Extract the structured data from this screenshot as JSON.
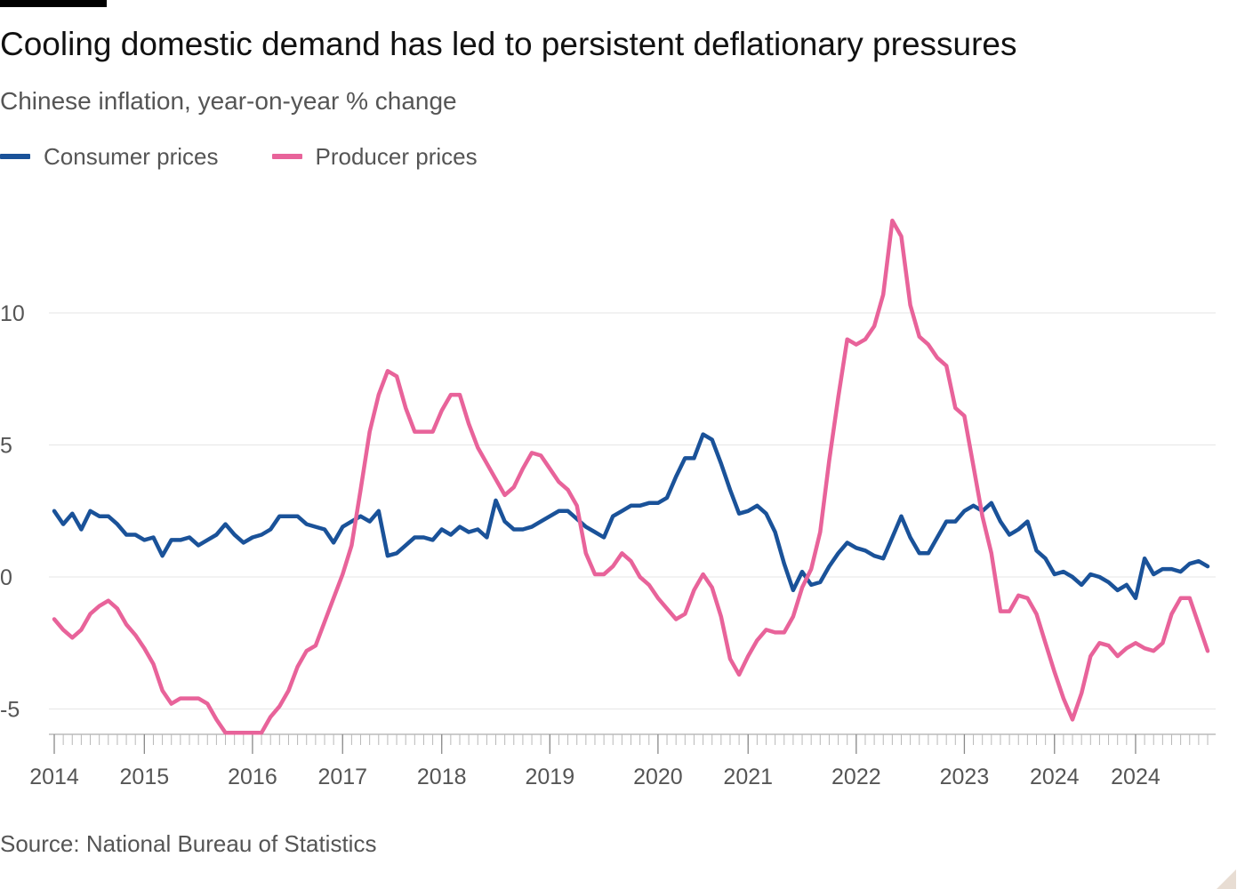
{
  "title": "Cooling domestic demand has led to persistent deflationary pressures",
  "subtitle": "Chinese inflation, year-on-year % change",
  "source": "Source: National Bureau of Statistics",
  "colors": {
    "consumer": "#1a5299",
    "producer": "#e8639a",
    "grid": "#e6e6e6",
    "axis": "#9a9a9a",
    "text": "#555555"
  },
  "chart_data": {
    "type": "line",
    "title": "Cooling domestic demand has led to persistent deflationary pressures",
    "subtitle": "Chinese inflation, year-on-year % change",
    "xlabel": "",
    "ylabel": "",
    "x_start": "2014-01",
    "x_step": "month",
    "x_ticks": [
      "2014",
      "2015",
      "2016",
      "2017",
      "2018",
      "2019",
      "2020",
      "2021",
      "2022",
      "2023",
      "2024",
      "2024"
    ],
    "y_ticks": [
      "10",
      "5",
      "0",
      "-5"
    ],
    "ylim": [
      -6.2,
      14
    ],
    "grid": true,
    "legend_position": "top-left",
    "series": [
      {
        "name": "Consumer prices",
        "color": "#1a5299",
        "values": [
          2.5,
          2.0,
          2.4,
          1.8,
          2.5,
          2.3,
          2.3,
          2.0,
          1.6,
          1.6,
          1.4,
          1.5,
          0.8,
          1.4,
          1.4,
          1.5,
          1.2,
          1.4,
          1.6,
          2.0,
          1.6,
          1.3,
          1.5,
          1.6,
          1.8,
          2.3,
          2.3,
          2.3,
          2.0,
          1.9,
          1.8,
          1.3,
          1.9,
          2.1,
          2.3,
          2.1,
          2.5,
          0.8,
          0.9,
          1.2,
          1.5,
          1.5,
          1.4,
          1.8,
          1.6,
          1.9,
          1.7,
          1.8,
          1.5,
          2.9,
          2.1,
          1.8,
          1.8,
          1.9,
          2.1,
          2.3,
          2.5,
          2.5,
          2.2,
          1.9,
          1.7,
          1.5,
          2.3,
          2.5,
          2.7,
          2.7,
          2.8,
          2.8,
          3.0,
          3.8,
          4.5,
          4.5,
          5.4,
          5.2,
          4.3,
          3.3,
          2.4,
          2.5,
          2.7,
          2.4,
          1.7,
          0.5,
          -0.5,
          0.2,
          -0.3,
          -0.2,
          0.4,
          0.9,
          1.3,
          1.1,
          1.0,
          0.8,
          0.7,
          1.5,
          2.3,
          1.5,
          0.9,
          0.9,
          1.5,
          2.1,
          2.1,
          2.5,
          2.7,
          2.5,
          2.8,
          2.1,
          1.6,
          1.8,
          2.1,
          1.0,
          0.7,
          0.1,
          0.2,
          0.0,
          -0.3,
          0.1,
          0.0,
          -0.2,
          -0.5,
          -0.3,
          -0.8,
          0.7,
          0.1,
          0.3,
          0.3,
          0.2,
          0.5,
          0.6,
          0.4
        ]
      },
      {
        "name": "Producer prices",
        "color": "#e8639a",
        "values": [
          -1.6,
          -2.0,
          -2.3,
          -2.0,
          -1.4,
          -1.1,
          -0.9,
          -1.2,
          -1.8,
          -2.2,
          -2.7,
          -3.3,
          -4.3,
          -4.8,
          -4.6,
          -4.6,
          -4.6,
          -4.8,
          -5.4,
          -5.9,
          -5.9,
          -5.9,
          -5.9,
          -5.9,
          -5.3,
          -4.9,
          -4.3,
          -3.4,
          -2.8,
          -2.6,
          -1.7,
          -0.8,
          0.1,
          1.2,
          3.3,
          5.5,
          6.9,
          7.8,
          7.6,
          6.4,
          5.5,
          5.5,
          5.5,
          6.3,
          6.9,
          6.9,
          5.8,
          4.9,
          4.3,
          3.7,
          3.1,
          3.4,
          4.1,
          4.7,
          4.6,
          4.1,
          3.6,
          3.3,
          2.7,
          0.9,
          0.1,
          0.1,
          0.4,
          0.9,
          0.6,
          0.0,
          -0.3,
          -0.8,
          -1.2,
          -1.6,
          -1.4,
          -0.5,
          0.1,
          -0.4,
          -1.5,
          -3.1,
          -3.7,
          -3.0,
          -2.4,
          -2.0,
          -2.1,
          -2.1,
          -1.5,
          -0.4,
          0.3,
          1.7,
          4.4,
          6.8,
          9.0,
          8.8,
          9.0,
          9.5,
          10.7,
          13.5,
          12.9,
          10.3,
          9.1,
          8.8,
          8.3,
          8.0,
          6.4,
          6.1,
          4.2,
          2.3,
          0.9,
          -1.3,
          -1.3,
          -0.7,
          -0.8,
          -1.4,
          -2.5,
          -3.6,
          -4.6,
          -5.4,
          -4.4,
          -3.0,
          -2.5,
          -2.6,
          -3.0,
          -2.7,
          -2.5,
          -2.7,
          -2.8,
          -2.5,
          -1.4,
          -0.8,
          -0.8,
          -1.8,
          -2.8
        ]
      }
    ]
  }
}
